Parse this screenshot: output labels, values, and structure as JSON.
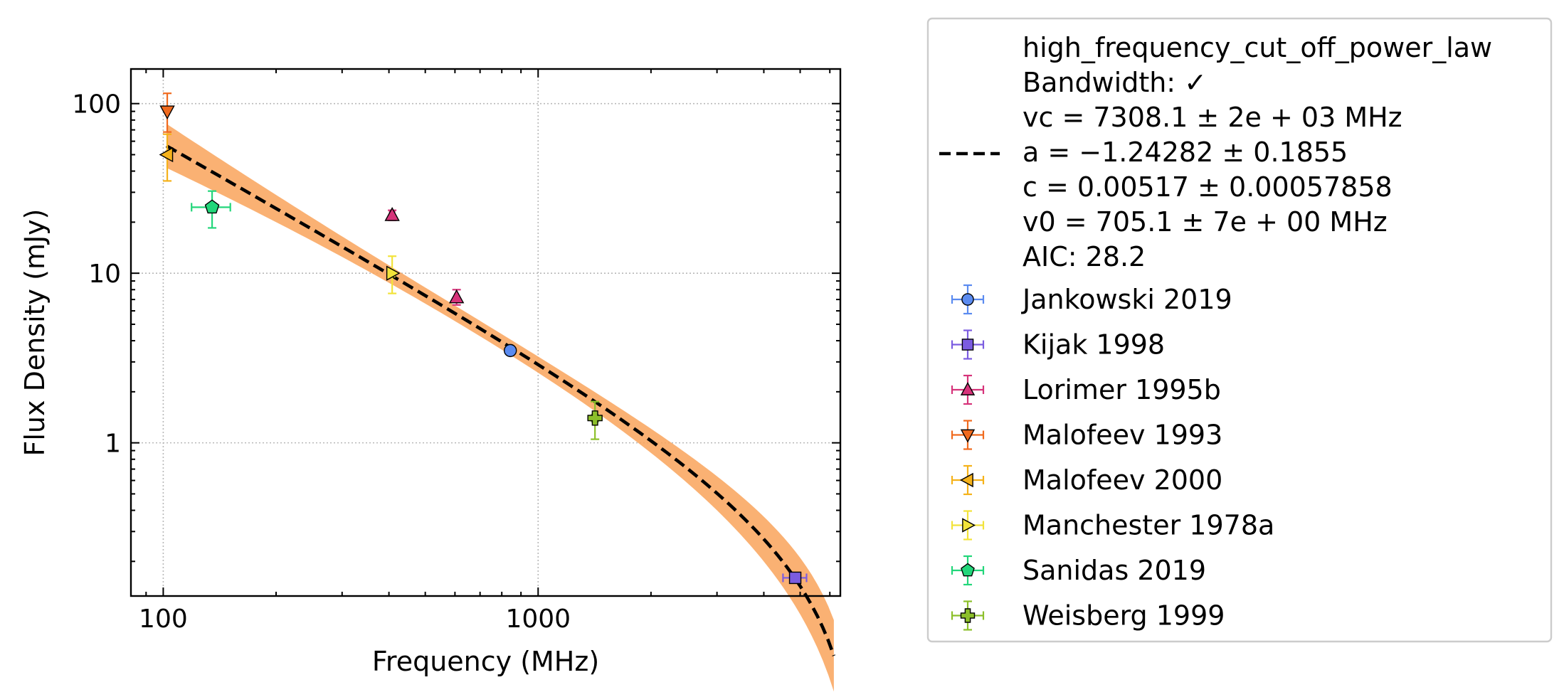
{
  "chart_data": {
    "type": "scatter",
    "xlabel": "Frequency (MHz)",
    "ylabel": "Flux Density (mJy)",
    "xscale": "log",
    "yscale": "log",
    "xlim": [
      82,
      6400
    ],
    "ylim": [
      0.125,
      160
    ],
    "x_ticks": [
      100,
      1000
    ],
    "x_tick_labels": [
      "100",
      "1000"
    ],
    "y_ticks": [
      1,
      10,
      100
    ],
    "y_tick_labels": [
      "1",
      "10",
      "100"
    ],
    "grid": true,
    "legend_position": "outside-right",
    "fit": {
      "legend_lines": [
        "high_frequency_cut_off_power_law",
        "Bandwidth: ✓",
        "vc = 7308.1 ± 2e + 03 MHz",
        "a = −1.24282 ± 0.1855",
        "c = 0.00517 ± 0.00057858",
        "v0 = 705.1 ± 7e + 00 MHz",
        "AIC: 28.2"
      ],
      "model": "high_frequency_cut_off_power_law",
      "vc": 7308.1,
      "a": -1.24282,
      "c": 0.00517,
      "v0": 705.1,
      "line_color": "#000000",
      "band_color": "#f9a35a"
    },
    "series": [
      {
        "name": "Jankowski 2019",
        "marker": "circle",
        "color": "#5b8bf0",
        "points": [
          {
            "x": 843,
            "y": 3.5,
            "yerr_lo": 3.45,
            "yerr_hi": 3.55,
            "xerr_lo": 835,
            "xerr_hi": 851
          }
        ]
      },
      {
        "name": "Kijak 1998",
        "marker": "square",
        "color": "#7b5ce0",
        "points": [
          {
            "x": 4850,
            "y": 0.16,
            "yerr_lo": 0.155,
            "yerr_hi": 0.165,
            "xerr_lo": 4500,
            "xerr_hi": 5200
          }
        ]
      },
      {
        "name": "Lorimer 1995b",
        "marker": "triangle-up",
        "color": "#d6337a",
        "points": [
          {
            "x": 408,
            "y": 22,
            "yerr_lo": 20.5,
            "yerr_hi": 23.5,
            "xerr_lo": 402,
            "xerr_hi": 414
          },
          {
            "x": 606,
            "y": 7.2,
            "yerr_lo": 6.5,
            "yerr_hi": 8.0,
            "xerr_lo": 600,
            "xerr_hi": 612
          }
        ]
      },
      {
        "name": "Malofeev 1993",
        "marker": "triangle-down",
        "color": "#f06a1e",
        "points": [
          {
            "x": 102.5,
            "y": 90,
            "yerr_lo": 68,
            "yerr_hi": 115,
            "xerr_lo": 101.8,
            "xerr_hi": 103.2
          }
        ]
      },
      {
        "name": "Malofeev 2000",
        "marker": "triangle-left",
        "color": "#f5b21a",
        "points": [
          {
            "x": 102.5,
            "y": 50,
            "yerr_lo": 35,
            "yerr_hi": 66,
            "xerr_lo": 101.8,
            "xerr_hi": 103.2
          }
        ]
      },
      {
        "name": "Manchester 1978a",
        "marker": "triangle-right",
        "color": "#f2e33a",
        "points": [
          {
            "x": 408,
            "y": 10,
            "yerr_lo": 7.6,
            "yerr_hi": 12.6,
            "xerr_lo": 402,
            "xerr_hi": 414
          }
        ]
      },
      {
        "name": "Sanidas 2019",
        "marker": "pentagon",
        "color": "#22d67a",
        "points": [
          {
            "x": 135,
            "y": 24.5,
            "yerr_lo": 18.5,
            "yerr_hi": 30.5,
            "xerr_lo": 119,
            "xerr_hi": 151
          }
        ]
      },
      {
        "name": "Weisberg 1999",
        "marker": "plus",
        "color": "#8cbf2a",
        "points": [
          {
            "x": 1418,
            "y": 1.4,
            "yerr_lo": 1.05,
            "yerr_hi": 1.75,
            "xerr_lo": 1390,
            "xerr_hi": 1446
          }
        ]
      }
    ]
  }
}
